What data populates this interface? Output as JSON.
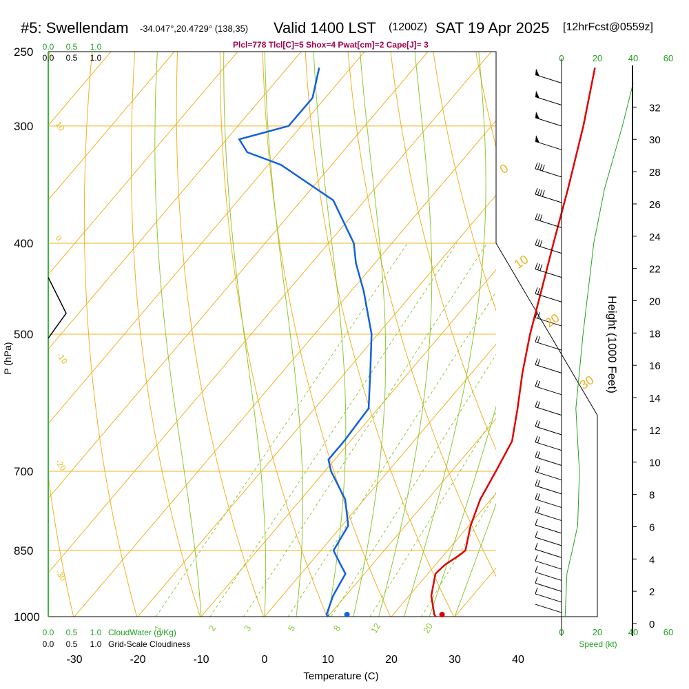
{
  "header": {
    "station": "#5: Swellendam",
    "coords": "-34.047°,20.4729° (138,35)",
    "valid": "Valid 1400 LST",
    "zulu": "(1200Z)",
    "date": "SAT 19 Apr 2025",
    "forecast": "[12hrFcst@0559z]",
    "indices": "Plcl=778 Tlcl[C]=5 Shox=4 Pwat[cm]=2 Cape[J]= 3"
  },
  "chart_data": {
    "type": "skew-t sounding",
    "xlabel": "Temperature (C)",
    "ylabel": "P (hPa)",
    "right_ylabel": "Height (1000 Feet)",
    "x_ticks": [
      "-30",
      "-20",
      "-10",
      "0",
      "10",
      "20",
      "30",
      "40"
    ],
    "pressure_ticks": [
      "250",
      "300",
      "400",
      "500",
      "700",
      "850",
      "1000"
    ],
    "height_ticks": [
      "0",
      "2",
      "4",
      "6",
      "8",
      "10",
      "12",
      "14",
      "16",
      "18",
      "20",
      "22",
      "24",
      "26",
      "28",
      "30",
      "32"
    ],
    "xlim": [
      -34,
      47
    ],
    "plim": [
      1000,
      250
    ],
    "isotherm_labels": [
      "0",
      "10",
      "20",
      "30"
    ],
    "dry_adiabat_labels_left": [
      "10",
      "0",
      "-10",
      "-20",
      "-30"
    ],
    "mixing_ratio_labels": [
      "1",
      "2",
      "3",
      "5",
      "8",
      "12",
      "20"
    ],
    "cloudwater": {
      "label": "CloudWater (g/Kg)",
      "ticks": [
        "0.0",
        "0.5",
        "1.0"
      ]
    },
    "cloudiness": {
      "label": "Grid-Scale Cloudiness",
      "ticks": [
        "0.0",
        "0.5",
        "1.0"
      ]
    },
    "speed": {
      "label": "Speed (kt)",
      "ticks": [
        "0",
        "20",
        "40",
        "60"
      ]
    },
    "temperature_profile": {
      "color": "#e00000",
      "points": [
        [
          1000,
          27
        ],
        [
          995,
          26.5
        ],
        [
          950,
          23.5
        ],
        [
          900,
          21.2
        ],
        [
          880,
          21.5
        ],
        [
          860,
          22.5
        ],
        [
          850,
          22.8
        ],
        [
          800,
          20.3
        ],
        [
          750,
          18.3
        ],
        [
          700,
          17.0
        ],
        [
          650,
          15.5
        ],
        [
          600,
          12.0
        ],
        [
          550,
          8.0
        ],
        [
          500,
          4.0
        ],
        [
          450,
          0.0
        ],
        [
          400,
          -4.5
        ],
        [
          350,
          -9.5
        ],
        [
          300,
          -15.5
        ],
        [
          260,
          -21.5
        ]
      ]
    },
    "dewpoint_profile": {
      "color": "#1060e0",
      "points": [
        [
          1000,
          10.2
        ],
        [
          995,
          9.5
        ],
        [
          950,
          8.0
        ],
        [
          900,
          7.0
        ],
        [
          880,
          5.0
        ],
        [
          860,
          3.0
        ],
        [
          850,
          2.0
        ],
        [
          800,
          1.0
        ],
        [
          750,
          -3.0
        ],
        [
          700,
          -9.0
        ],
        [
          680,
          -11.0
        ],
        [
          650,
          -11.0
        ],
        [
          600,
          -11.5
        ],
        [
          550,
          -16.0
        ],
        [
          500,
          -21.0
        ],
        [
          450,
          -28.0
        ],
        [
          420,
          -33.0
        ],
        [
          400,
          -36.0
        ],
        [
          360,
          -45.0
        ],
        [
          330,
          -58.0
        ],
        [
          320,
          -65.0
        ],
        [
          310,
          -68.0
        ],
        [
          300,
          -62.0
        ],
        [
          280,
          -62.0
        ],
        [
          260,
          -65.0
        ]
      ]
    },
    "surface_temperature": 28,
    "surface_dewpoint": 13,
    "speed_profile": [
      [
        1000,
        2
      ],
      [
        900,
        3
      ],
      [
        850,
        6
      ],
      [
        800,
        9
      ],
      [
        700,
        10
      ],
      [
        650,
        9
      ],
      [
        600,
        8
      ],
      [
        500,
        12
      ],
      [
        400,
        18
      ],
      [
        350,
        24
      ],
      [
        300,
        34
      ],
      [
        270,
        40
      ]
    ],
    "wind_barbs": [
      {
        "p": 270,
        "barbs": 0,
        "pennants": 1
      },
      {
        "p": 285,
        "barbs": 0,
        "pennants": 1
      },
      {
        "p": 300,
        "barbs": 0,
        "pennants": 1
      },
      {
        "p": 318,
        "barbs": 0,
        "pennants": 1
      },
      {
        "p": 340,
        "barbs": 4,
        "pennants": 0
      },
      {
        "p": 362,
        "barbs": 4,
        "pennants": 0
      },
      {
        "p": 385,
        "barbs": 3,
        "pennants": 0
      },
      {
        "p": 410,
        "barbs": 3,
        "pennants": 0
      },
      {
        "p": 435,
        "barbs": 3,
        "pennants": 0
      },
      {
        "p": 462,
        "barbs": 2,
        "pennants": 0
      },
      {
        "p": 490,
        "barbs": 2,
        "pennants": 0
      },
      {
        "p": 520,
        "barbs": 2,
        "pennants": 0
      },
      {
        "p": 550,
        "barbs": 2,
        "pennants": 0
      },
      {
        "p": 580,
        "barbs": 2,
        "pennants": 0
      },
      {
        "p": 610,
        "barbs": 2,
        "pennants": 0
      },
      {
        "p": 640,
        "barbs": 2,
        "pennants": 0
      },
      {
        "p": 665,
        "barbs": 2,
        "pennants": 0
      },
      {
        "p": 690,
        "barbs": 2,
        "pennants": 0
      },
      {
        "p": 715,
        "barbs": 2,
        "pennants": 0
      },
      {
        "p": 740,
        "barbs": 2,
        "pennants": 0
      },
      {
        "p": 765,
        "barbs": 2,
        "pennants": 0
      },
      {
        "p": 790,
        "barbs": 2,
        "pennants": 0
      },
      {
        "p": 815,
        "barbs": 1,
        "pennants": 0
      },
      {
        "p": 840,
        "barbs": 1,
        "pennants": 0
      },
      {
        "p": 865,
        "barbs": 1,
        "pennants": 0
      },
      {
        "p": 890,
        "barbs": 1,
        "pennants": 0
      },
      {
        "p": 915,
        "barbs": 1,
        "pennants": 0
      },
      {
        "p": 940,
        "barbs": 1,
        "pennants": 0
      },
      {
        "p": 965,
        "barbs": 1,
        "pennants": 0
      },
      {
        "p": 990,
        "barbs": 0,
        "pennants": 0
      }
    ]
  }
}
